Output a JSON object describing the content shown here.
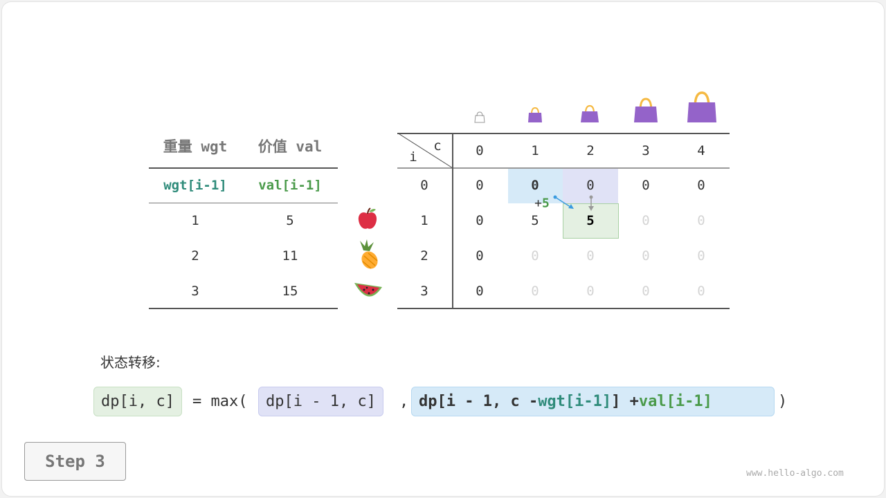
{
  "left_table": {
    "headers": [
      "重量 wgt",
      "价值 val"
    ],
    "sub_headers": [
      "wgt[i-1]",
      "val[i-1]"
    ],
    "rows": [
      [
        "1",
        "5"
      ],
      [
        "2",
        "11"
      ],
      [
        "3",
        "15"
      ]
    ],
    "items": [
      "apple-icon",
      "pineapple-icon",
      "watermelon-icon"
    ]
  },
  "dp_table": {
    "corner_c": "c",
    "corner_i": "i",
    "col_headers": [
      "0",
      "1",
      "2",
      "3",
      "4"
    ],
    "row_headers": [
      "0",
      "1",
      "2",
      "3"
    ],
    "cells": [
      [
        "0",
        "0",
        "0",
        "0",
        "0"
      ],
      [
        "0",
        "5",
        "5",
        "0",
        "0"
      ],
      [
        "0",
        "0",
        "0",
        "0",
        "0"
      ],
      [
        "0",
        "0",
        "0",
        "0",
        "0"
      ]
    ],
    "cell_state": [
      [
        "n",
        "n",
        "n",
        "n",
        "n"
      ],
      [
        "n",
        "n",
        "b",
        "f",
        "f"
      ],
      [
        "n",
        "f",
        "f",
        "f",
        "f"
      ],
      [
        "n",
        "f",
        "f",
        "f",
        "f"
      ]
    ],
    "plus_prefix": "+",
    "plus_value": "5"
  },
  "colors": {
    "teal": "#2e8b7a",
    "green": "#4a9a4a",
    "blue_hl": "#d6eaf8",
    "purple_hl": "#e0e2f6",
    "green_hl": "#e4f0e2",
    "bag": "#9463c9",
    "handle": "#f5b942"
  },
  "transition_label": "状态转移:",
  "formula": {
    "lhs": "dp[i, c]",
    "eq": "= max(",
    "a": "dp[i - 1, c]",
    "comma": ",",
    "b_pre": "dp[i - 1, c - ",
    "b_wgt": "wgt[i-1]",
    "b_mid": "] + ",
    "b_val": "val[i-1]",
    "close": ")"
  },
  "step_label": "Step 3",
  "watermark": "www.hello-algo.com"
}
